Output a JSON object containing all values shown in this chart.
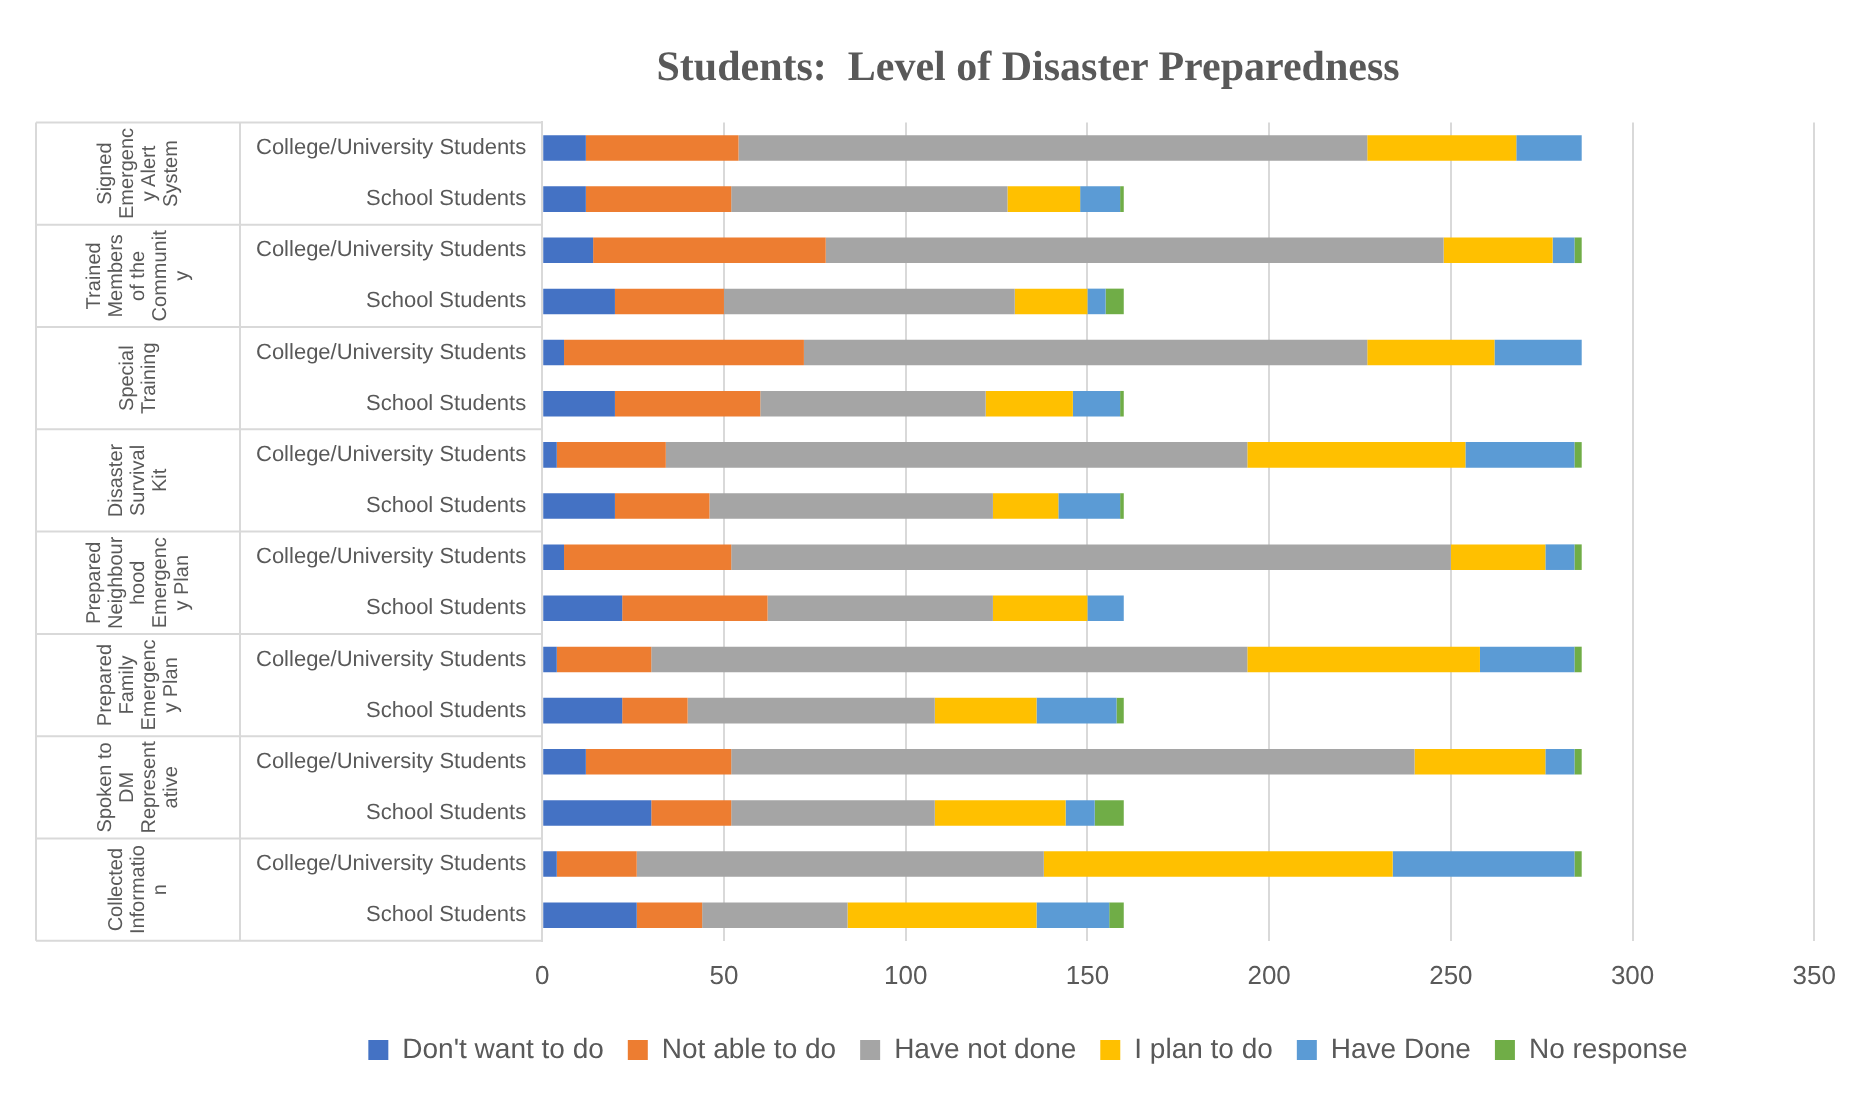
{
  "chart_data": {
    "type": "bar",
    "orientation": "horizontal",
    "stacked": true,
    "title": "Students:  Level of Disaster Preparedness",
    "categories": [
      "College/University Students",
      "School Students",
      "College/University Students",
      "School Students",
      "College/University Students",
      "School Students",
      "College/University Students",
      "School Students",
      "College/University Students",
      "School Students",
      "College/University Students",
      "School Students",
      "College/University Students",
      "School Students",
      "College/University Students",
      "School Students"
    ],
    "annotations": [
      "Signed Emergency Alert System",
      "Trained Members of the Community",
      "Special Training",
      "Disaster Survival Kit",
      "Prepared Neighbourhood Emergency Plan",
      "Prepared Family Emergency Plan",
      "Spoken to DM Representative",
      "Collected Information"
    ],
    "series": [
      {
        "name": "Don't want to do",
        "color": "#4472c4",
        "values": [
          12,
          12,
          14,
          20,
          6,
          20,
          4,
          20,
          6,
          22,
          4,
          22,
          12,
          30,
          4,
          26
        ]
      },
      {
        "name": "Not able to do",
        "color": "#ed7d31",
        "values": [
          42,
          40,
          64,
          30,
          66,
          40,
          30,
          26,
          46,
          40,
          26,
          18,
          40,
          22,
          22,
          18
        ]
      },
      {
        "name": "Have not done",
        "color": "#a5a5a5",
        "values": [
          173,
          76,
          170,
          80,
          155,
          62,
          160,
          78,
          198,
          62,
          164,
          68,
          188,
          56,
          112,
          40
        ]
      },
      {
        "name": "I plan to do",
        "color": "#ffc000",
        "values": [
          41,
          20,
          30,
          20,
          35,
          24,
          60,
          18,
          26,
          26,
          64,
          28,
          36,
          36,
          96,
          52
        ]
      },
      {
        "name": "Have Done",
        "color": "#5b9bd5",
        "values": [
          18,
          11,
          6,
          5,
          24,
          13,
          30,
          17,
          8,
          10,
          26,
          22,
          8,
          8,
          50,
          20
        ]
      },
      {
        "name": "No response",
        "color": "#70ad47",
        "values": [
          0,
          1,
          2,
          5,
          0,
          1,
          2,
          1,
          2,
          0,
          2,
          2,
          2,
          8,
          2,
          4
        ]
      }
    ],
    "xlim": [
      0,
      350
    ],
    "xticks": [
      0,
      50,
      100,
      150,
      200,
      250,
      300,
      350
    ],
    "grid": "x",
    "legend": "bottom"
  }
}
